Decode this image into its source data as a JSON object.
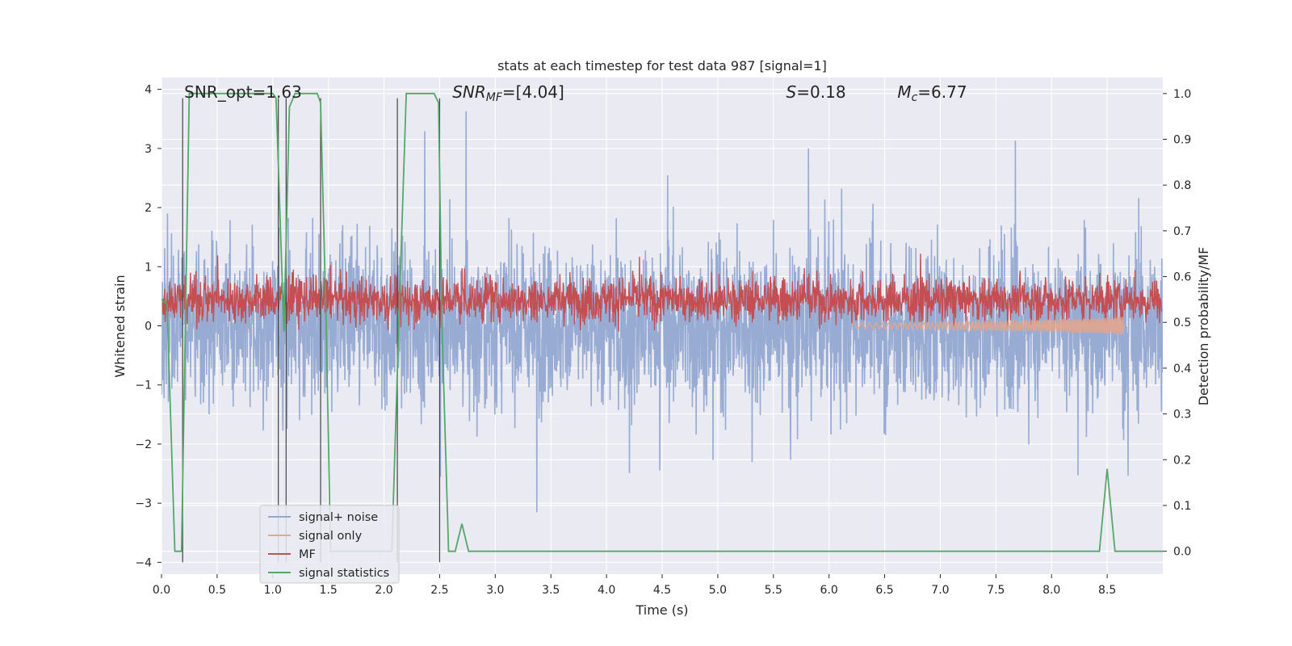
{
  "chart_data": {
    "type": "line",
    "title": "stats at each timestep for test data 987 [signal=1]",
    "xlabel": "Time (s)",
    "ylabel_left": "Whitened strain",
    "ylabel_right": "Detection probability/MF",
    "xlim": [
      0,
      9
    ],
    "ylim_left": [
      -4.2,
      4.2
    ],
    "ylim_right": [
      -0.05,
      1.035
    ],
    "x_ticks": [
      "0.0",
      "0.5",
      "1.0",
      "1.5",
      "2.0",
      "2.5",
      "3.0",
      "3.5",
      "4.0",
      "4.5",
      "5.0",
      "5.5",
      "6.0",
      "6.5",
      "7.0",
      "7.5",
      "8.0",
      "8.5"
    ],
    "y_left_ticks": [
      "−4",
      "−3",
      "−2",
      "−1",
      "0",
      "1",
      "2",
      "3",
      "4"
    ],
    "y_right_ticks": [
      "0.0",
      "0.1",
      "0.2",
      "0.3",
      "0.4",
      "0.5",
      "0.6",
      "0.7",
      "0.8",
      "0.9",
      "1.0"
    ],
    "grid": true,
    "legend_position": "lower-left",
    "annotations": [
      {
        "text": "SNR_opt=1.63",
        "x": 0.19
      },
      {
        "text": "SNR_MF=[4.04]",
        "x": 2.6
      },
      {
        "text": "S=0.18",
        "x": 5.6
      },
      {
        "text": "M_c=6.77",
        "x": 6.6
      }
    ],
    "series": [
      {
        "name": "signal+ noise",
        "axis": "left",
        "color": "#92a8d1",
        "kind": "noise",
        "amplitude_typical": 1.3,
        "amplitude_max": 4.0
      },
      {
        "name": "signal only",
        "axis": "left",
        "color": "#e8a58a",
        "kind": "chirp",
        "x_start": 6.2,
        "x_end": 8.65
      },
      {
        "name": "MF",
        "axis": "right",
        "color": "#c44e52",
        "kind": "mf",
        "mean": 0.55,
        "spread": 0.035
      },
      {
        "name": "signal statistics",
        "axis": "right",
        "color": "#55a868",
        "x": [
          0.0,
          0.05,
          0.12,
          0.18,
          0.25,
          0.3,
          0.4,
          0.6,
          0.8,
          1.0,
          1.03,
          1.1,
          1.15,
          1.2,
          1.4,
          1.43,
          1.48,
          1.52,
          1.6,
          1.8,
          2.0,
          2.07,
          2.14,
          2.2,
          2.45,
          2.49,
          2.52,
          2.58,
          2.64,
          2.7,
          2.76,
          2.85,
          3.5,
          4.0,
          5.0,
          6.0,
          7.0,
          8.0,
          8.43,
          8.5,
          8.57,
          8.65,
          9.0
        ],
        "y": [
          0.55,
          0.54,
          0.0,
          0.0,
          1.0,
          1.0,
          1.0,
          1.0,
          1.0,
          1.0,
          0.99,
          0.48,
          0.97,
          1.0,
          1.0,
          0.98,
          0.5,
          0.0,
          0.0,
          0.0,
          0.0,
          0.0,
          0.55,
          1.0,
          1.0,
          0.98,
          0.5,
          0.0,
          0.0,
          0.06,
          0.0,
          0.0,
          0.0,
          0.0,
          0.0,
          0.0,
          0.0,
          0.0,
          0.0,
          0.18,
          0.0,
          0.0,
          0.0
        ]
      },
      {
        "name": "",
        "axis": "left",
        "color": "#444444",
        "kind": "vlines",
        "x": [
          0.19,
          1.05,
          1.12,
          1.43,
          2.12,
          2.5
        ],
        "top": 3.85,
        "bottom": -4.0
      }
    ]
  }
}
